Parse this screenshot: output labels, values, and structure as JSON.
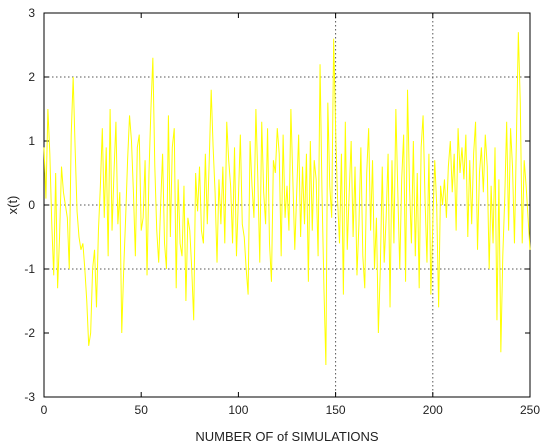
{
  "chart_data": {
    "type": "line",
    "title": "",
    "xlabel": "NUMBER OF of SIMULATIONS",
    "ylabel": "x(t)",
    "xlim": [
      0,
      250
    ],
    "ylim": [
      -3,
      3
    ],
    "xticks": [
      0,
      50,
      100,
      150,
      200,
      250
    ],
    "yticks": [
      -3,
      -2,
      -1,
      0,
      1,
      2,
      3
    ],
    "grid": "dotted lines at y = -1, 0, 2 and x = 150, 200",
    "hlines": [
      -1,
      0,
      2
    ],
    "vlines": [
      150,
      200
    ],
    "line_color": "#ffff00",
    "series": [
      {
        "name": "",
        "x_start": 0,
        "x_step": 1,
        "values": [
          0.9,
          0.1,
          1.5,
          0.8,
          -0.3,
          -1.1,
          0.5,
          -1.3,
          -0.5,
          0.6,
          0.2,
          0.0,
          -0.2,
          -1.0,
          1.1,
          2.0,
          0.9,
          -0.1,
          -0.5,
          -0.7,
          -0.6,
          -1.0,
          -1.5,
          -2.2,
          -2.0,
          -1.0,
          -0.7,
          -1.6,
          -0.4,
          0.3,
          1.2,
          -0.2,
          0.9,
          -0.8,
          1.5,
          -0.4,
          0.5,
          1.3,
          -0.3,
          0.2,
          -2.0,
          -1.0,
          -0.2,
          0.7,
          1.4,
          1.0,
          0.2,
          -0.8,
          0.9,
          1.1,
          -0.4,
          -0.2,
          0.7,
          -1.1,
          0.5,
          1.5,
          2.3,
          0.6,
          -0.4,
          -0.9,
          0.0,
          0.8,
          -0.6,
          -1.0,
          1.4,
          -0.5,
          0.9,
          1.2,
          -1.3,
          0.4,
          -0.6,
          -0.8,
          0.3,
          -1.5,
          -0.2,
          -0.4,
          -1.0,
          -1.8,
          0.5,
          -0.1,
          0.6,
          -0.4,
          -0.6,
          0.8,
          -0.3,
          0.7,
          1.8,
          0.9,
          0.2,
          -0.9,
          0.4,
          -0.3,
          0.6,
          -0.6,
          1.3,
          0.7,
          0.3,
          -0.6,
          0.9,
          -0.8,
          0.1,
          1.1,
          -0.3,
          -0.5,
          -1.0,
          -1.4,
          1.0,
          0.3,
          -0.2,
          1.5,
          0.4,
          -0.9,
          1.3,
          0.2,
          -0.3,
          1.2,
          -0.6,
          -1.2,
          0.7,
          0.5,
          1.2,
          0.8,
          -0.8,
          1.1,
          -0.2,
          0.3,
          -0.4,
          1.5,
          0.4,
          -0.7,
          0.2,
          1.1,
          -0.5,
          0.6,
          -0.3,
          0.8,
          -1.2,
          1.0,
          -0.4,
          0.7,
          0.4,
          -0.8,
          2.2,
          0.2,
          -1.3,
          -2.5,
          1.6,
          0.3,
          -0.2,
          2.6,
          1.2,
          0.1,
          -0.6,
          0.8,
          -1.4,
          1.3,
          -0.7,
          0.2,
          1.0,
          -0.5,
          0.6,
          -1.1,
          -0.3,
          0.9,
          -0.8,
          -1.3,
          0.5,
          1.2,
          -0.4,
          0.7,
          -1.0,
          -0.2,
          -2.0,
          -1.0,
          0.6,
          -0.9,
          -0.2,
          0.8,
          -1.6,
          0.7,
          -0.6,
          1.5,
          0.2,
          -1.0,
          0.4,
          1.1,
          -1.2,
          1.8,
          0.3,
          -0.6,
          1.0,
          -0.8,
          0.5,
          -1.3,
          0.9,
          1.4,
          0.1,
          -0.9,
          0.8,
          -1.4,
          -0.3,
          0.7,
          0.0,
          -1.6,
          0.3,
          0.0,
          0.4,
          -0.2,
          0.6,
          1.0,
          0.2,
          0.8,
          -0.4,
          1.2,
          0.5,
          0.9,
          0.4,
          1.1,
          -0.5,
          0.7,
          -0.3,
          0.8,
          1.3,
          -0.7,
          0.5,
          0.9,
          0.2,
          1.1,
          0.6,
          -1.0,
          0.3,
          -0.6,
          0.9,
          -1.8,
          0.4,
          -2.3,
          -0.8,
          0.1,
          1.3,
          -0.4,
          1.2,
          0.6,
          -0.6,
          1.0,
          2.7,
          1.6,
          -0.6,
          0.7,
          0.3,
          -0.2,
          -0.7
        ]
      }
    ]
  }
}
